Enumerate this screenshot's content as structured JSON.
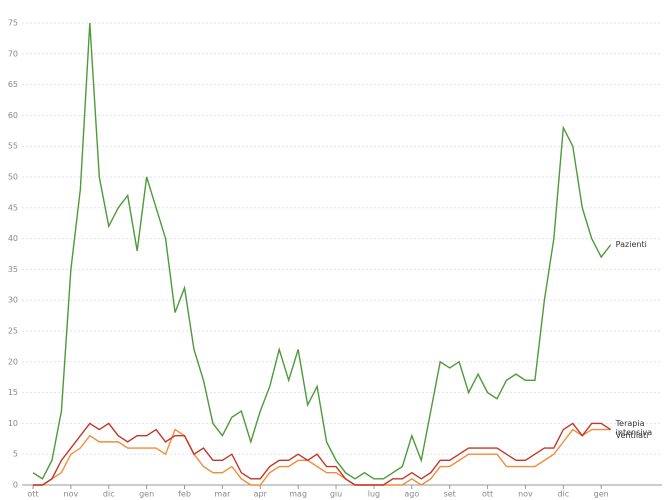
{
  "chart_data": {
    "type": "line",
    "categories": [
      "ott",
      null,
      null,
      null,
      "nov",
      null,
      null,
      null,
      "dic",
      null,
      null,
      null,
      "gen",
      null,
      null,
      null,
      "feb",
      null,
      null,
      null,
      "mar",
      null,
      null,
      null,
      "apr",
      null,
      null,
      null,
      "mag",
      null,
      null,
      null,
      "giu",
      null,
      null,
      null,
      "lug",
      null,
      null,
      null,
      "ago",
      null,
      null,
      null,
      "set",
      null,
      null,
      null,
      "ott",
      null,
      null,
      null,
      "nov",
      null,
      null,
      null,
      "dic",
      null,
      null,
      null,
      "gen",
      null
    ],
    "series": [
      {
        "name": "Pazienti",
        "color": "#4e9a3a",
        "values": [
          2,
          1,
          4,
          12,
          35,
          48,
          75,
          50,
          42,
          45,
          47,
          38,
          50,
          45,
          40,
          28,
          32,
          22,
          17,
          10,
          8,
          11,
          12,
          7,
          12,
          16,
          22,
          17,
          22,
          13,
          16,
          7,
          4,
          2,
          1,
          2,
          1,
          1,
          2,
          3,
          8,
          4,
          12,
          20,
          19,
          20,
          15,
          18,
          15,
          14,
          17,
          18,
          17,
          17,
          30,
          40,
          58,
          55,
          45,
          40,
          37,
          39
        ]
      },
      {
        "name": "Terapia intensiva",
        "color": "#c4362a",
        "values": [
          0,
          0,
          1,
          4,
          6,
          8,
          10,
          9,
          10,
          8,
          7,
          8,
          8,
          9,
          7,
          8,
          8,
          5,
          6,
          4,
          4,
          5,
          2,
          1,
          1,
          3,
          4,
          4,
          5,
          4,
          5,
          3,
          3,
          1,
          0,
          0,
          0,
          0,
          1,
          1,
          2,
          1,
          2,
          4,
          4,
          5,
          6,
          6,
          6,
          6,
          5,
          4,
          4,
          5,
          6,
          6,
          9,
          10,
          8,
          10,
          10,
          9
        ]
      },
      {
        "name": "Ventilati",
        "color": "#f28c38",
        "values": [
          0,
          0,
          1,
          2,
          5,
          6,
          8,
          7,
          7,
          7,
          6,
          6,
          6,
          6,
          5,
          9,
          8,
          5,
          3,
          2,
          2,
          3,
          1,
          0,
          0,
          2,
          3,
          3,
          4,
          4,
          3,
          2,
          2,
          1,
          0,
          0,
          0,
          0,
          0,
          0,
          1,
          0,
          1,
          3,
          3,
          4,
          5,
          5,
          5,
          5,
          3,
          3,
          3,
          3,
          4,
          5,
          7,
          9,
          8,
          9,
          9,
          9
        ]
      }
    ],
    "ylim": [
      0,
      75
    ],
    "yticks": [
      0,
      5,
      10,
      15,
      20,
      25,
      30,
      35,
      40,
      45,
      50,
      55,
      60,
      65,
      70,
      75
    ],
    "grid": true
  }
}
